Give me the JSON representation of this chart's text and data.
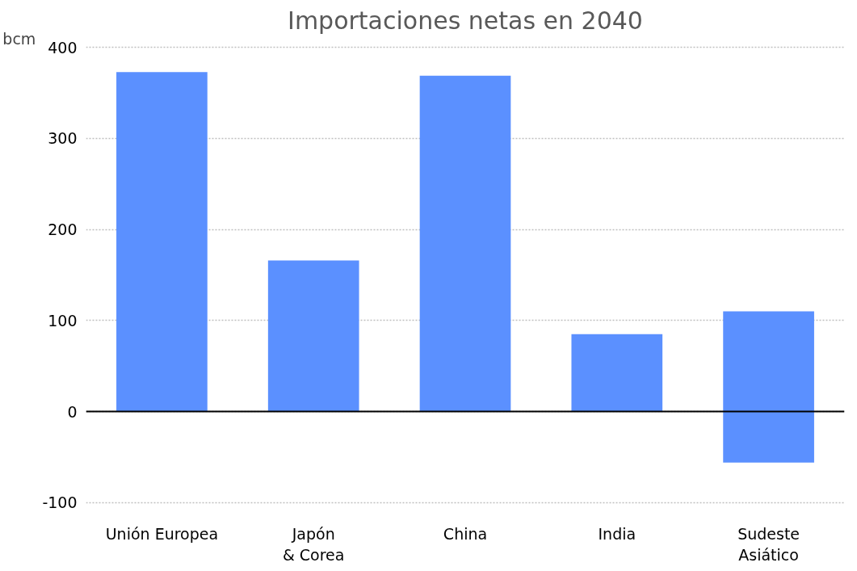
{
  "chart_data": {
    "type": "bar",
    "title": "Importaciones netas en 2040",
    "ylabel": "bcm",
    "categories": [
      "Unión Europea",
      "Japón\n& Corea",
      "China",
      "India",
      "Sudeste\nAsiático"
    ],
    "values": [
      373,
      166,
      369,
      85,
      166
    ],
    "base": [
      0,
      0,
      0,
      0,
      -56
    ],
    "color": "#5b90ff",
    "ylim": [
      -100,
      400
    ],
    "yticks": [
      -100,
      0,
      100,
      200,
      300,
      400
    ],
    "grid": "y"
  }
}
